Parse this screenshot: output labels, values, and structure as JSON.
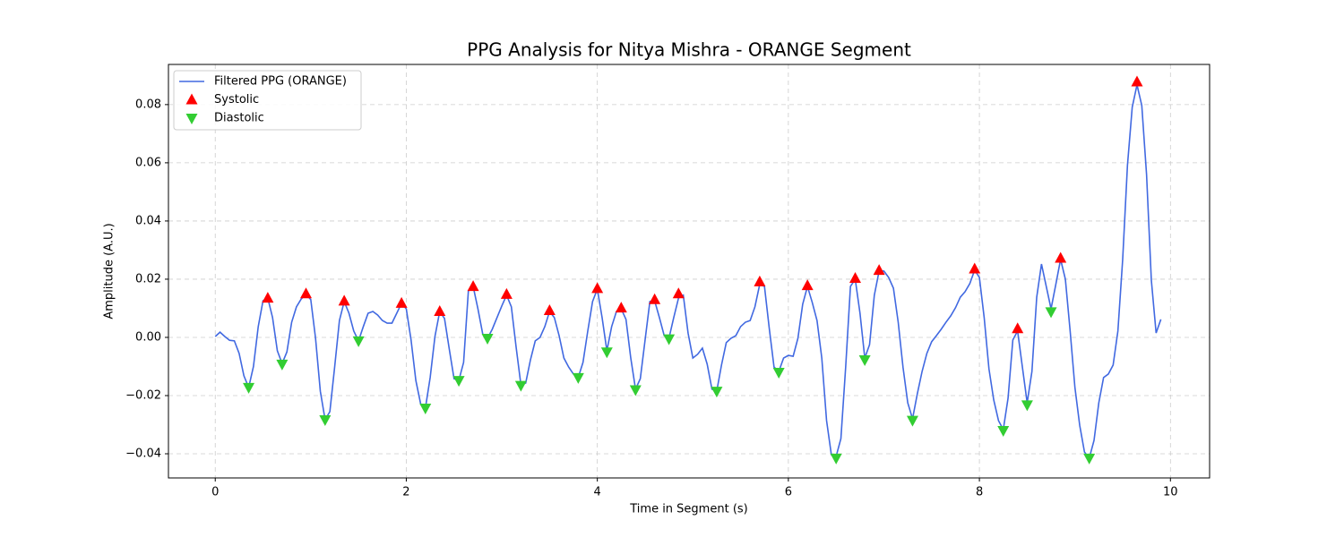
{
  "chart_data": {
    "type": "line",
    "title": "PPG Analysis for Nitya Mishra - ORANGE Segment",
    "x_label": "Time in Segment (s)",
    "y_label": "Amplitude (A.U.)",
    "xlim": [
      -0.49,
      10.41
    ],
    "ylim": [
      -0.0483,
      0.0938
    ],
    "xticks": [
      0,
      2,
      4,
      6,
      8,
      10
    ],
    "yticks": [
      {
        "value": -0.04,
        "label": "−0.04"
      },
      {
        "value": -0.02,
        "label": "−0.02"
      },
      {
        "value": 0,
        "label": "0.00"
      },
      {
        "value": 0.02,
        "label": "0.02"
      },
      {
        "value": 0.04,
        "label": "0.04"
      },
      {
        "value": 0.06,
        "label": "0.06"
      },
      {
        "value": 0.08,
        "label": "0.08"
      }
    ],
    "grid": true,
    "legend": "upper left",
    "series": [
      {
        "name": "Filtered PPG (ORANGE)",
        "type": "line",
        "color": "#4169e1",
        "x": [
          0,
          0.05,
          0.1,
          0.15,
          0.2,
          0.25,
          0.3,
          0.35,
          0.4,
          0.45,
          0.5,
          0.55,
          0.6,
          0.65,
          0.7,
          0.75,
          0.8,
          0.85,
          0.9,
          0.95,
          1.0,
          1.05,
          1.1,
          1.15,
          1.2,
          1.25,
          1.3,
          1.35,
          1.4,
          1.45,
          1.5,
          1.55,
          1.6,
          1.65,
          1.7,
          1.75,
          1.8,
          1.85,
          1.9,
          1.95,
          2.0,
          2.05,
          2.1,
          2.15,
          2.2,
          2.25,
          2.3,
          2.35,
          2.4,
          2.45,
          2.5,
          2.55,
          2.6,
          2.65,
          2.7,
          2.75,
          2.8,
          2.85,
          2.9,
          2.95,
          3.0,
          3.05,
          3.1,
          3.15,
          3.2,
          3.25,
          3.3,
          3.35,
          3.4,
          3.45,
          3.5,
          3.55,
          3.6,
          3.65,
          3.7,
          3.75,
          3.8,
          3.85,
          3.9,
          3.95,
          4.0,
          4.05,
          4.1,
          4.15,
          4.2,
          4.25,
          4.3,
          4.35,
          4.4,
          4.45,
          4.5,
          4.55,
          4.6,
          4.65,
          4.7,
          4.75,
          4.8,
          4.85,
          4.9,
          4.95,
          5.0,
          5.05,
          5.1,
          5.15,
          5.2,
          5.25,
          5.3,
          5.35,
          5.4,
          5.45,
          5.5,
          5.55,
          5.6,
          5.65,
          5.7,
          5.75,
          5.8,
          5.85,
          5.9,
          5.95,
          6.0,
          6.05,
          6.1,
          6.15,
          6.2,
          6.25,
          6.3,
          6.35,
          6.4,
          6.45,
          6.5,
          6.55,
          6.6,
          6.65,
          6.7,
          6.75,
          6.8,
          6.85,
          6.9,
          6.95,
          7.0,
          7.05,
          7.1,
          7.15,
          7.2,
          7.25,
          7.3,
          7.35,
          7.4,
          7.45,
          7.5,
          7.55,
          7.6,
          7.65,
          7.7,
          7.75,
          7.8,
          7.85,
          7.9,
          7.95,
          8.0,
          8.05,
          8.1,
          8.15,
          8.2,
          8.25,
          8.3,
          8.35,
          8.4,
          8.45,
          8.5,
          8.55,
          8.6,
          8.65,
          8.7,
          8.75,
          8.8,
          8.85,
          8.9,
          8.95,
          9.0,
          9.05,
          9.1,
          9.15,
          9.2,
          9.25,
          9.3,
          9.35,
          9.4,
          9.45,
          9.5,
          9.55,
          9.6,
          9.65,
          9.7,
          9.75,
          9.8,
          9.85,
          9.9
        ],
        "values": [
          0.0003,
          0.0018,
          0.0003,
          -0.001,
          -0.0012,
          -0.0055,
          -0.0132,
          -0.0172,
          -0.01,
          0.0037,
          0.0126,
          0.0135,
          0.0068,
          -0.0046,
          -0.009,
          -0.005,
          0.0052,
          0.0105,
          0.0132,
          0.0148,
          0.013,
          -0.0003,
          -0.0185,
          -0.0283,
          -0.0255,
          -0.0102,
          0.0058,
          0.0123,
          0.0083,
          0.0022,
          -0.0012,
          0.0037,
          0.0083,
          0.0089,
          0.0077,
          0.0058,
          0.0049,
          0.0049,
          0.0083,
          0.0117,
          0.0098,
          -0.0009,
          -0.0148,
          -0.0228,
          -0.0243,
          -0.0138,
          0.0003,
          0.0089,
          0.0065,
          -0.004,
          -0.0142,
          -0.0148,
          -0.0086,
          0.016,
          0.0175,
          0.0098,
          0.0012,
          -0.0003,
          0.0028,
          0.0068,
          0.0108,
          0.0145,
          0.0105,
          -0.0034,
          -0.0163,
          -0.0157,
          -0.0077,
          -0.0012,
          0,
          0.0037,
          0.0089,
          0.0068,
          0.0006,
          -0.0071,
          -0.0102,
          -0.0126,
          -0.0138,
          -0.0086,
          0.0022,
          0.0123,
          0.0166,
          0.0068,
          -0.0046,
          0.0037,
          0.0089,
          0.0098,
          0.0062,
          -0.0071,
          -0.0178,
          -0.0142,
          -0.0009,
          0.0123,
          0.0126,
          0.0068,
          0.0006,
          -0.0003,
          0.0068,
          0.0135,
          0.0145,
          0.0015,
          -0.0071,
          -0.0058,
          -0.0037,
          -0.0092,
          -0.0178,
          -0.0185,
          -0.0095,
          -0.0018,
          -0.0003,
          0.0006,
          0.0037,
          0.0052,
          0.0058,
          0.0105,
          0.0182,
          0.0175,
          0.0031,
          -0.0102,
          -0.0117,
          -0.0071,
          -0.0062,
          -0.0065,
          -0.0003,
          0.0114,
          0.0175,
          0.012,
          0.0058,
          -0.0071,
          -0.0286,
          -0.0403,
          -0.0409,
          -0.0348,
          -0.0102,
          0.0175,
          0.02,
          0.0083,
          -0.0071,
          -0.0025,
          0.0145,
          0.0228,
          0.0228,
          0.0206,
          0.0169,
          0.0052,
          -0.0102,
          -0.0225,
          -0.028,
          -0.0194,
          -0.0117,
          -0.0055,
          -0.0015,
          0.0006,
          0.0028,
          0.0052,
          0.0074,
          0.0102,
          0.0138,
          0.0157,
          0.0185,
          0.0231,
          0.0206,
          0.0068,
          -0.0108,
          -0.0215,
          -0.0286,
          -0.0317,
          -0.0209,
          -0.0009,
          0.0022,
          -0.0102,
          -0.0225,
          -0.0117,
          0.0138,
          0.0252,
          0.0175,
          0.0098,
          0.0182,
          0.0268,
          0.02,
          0.0022,
          -0.0172,
          -0.0302,
          -0.0394,
          -0.0415,
          -0.0354,
          -0.0225,
          -0.0138,
          -0.0126,
          -0.0095,
          0.0022,
          0.0268,
          0.0591,
          0.0791,
          0.0868,
          0.0797,
          0.056,
          0.0197,
          0.0015,
          0.0062
        ]
      },
      {
        "name": "Systolic",
        "type": "scatter",
        "marker": "^",
        "color": "#ff0000",
        "x": [
          0.55,
          0.95,
          1.35,
          1.95,
          2.35,
          2.7,
          3.05,
          3.5,
          4.0,
          4.25,
          4.6,
          4.85,
          5.7,
          6.2,
          6.7,
          6.95,
          7.95,
          8.4,
          8.85,
          9.65
        ],
        "values": [
          0.0135,
          0.015,
          0.0125,
          0.0117,
          0.0089,
          0.0175,
          0.0148,
          0.0092,
          0.0168,
          0.0101,
          0.013,
          0.015,
          0.0191,
          0.0178,
          0.0203,
          0.023,
          0.0235,
          0.003,
          0.0272,
          0.0878
        ]
      },
      {
        "name": "Diastolic",
        "type": "scatter",
        "marker": "v",
        "color": "#32cd32",
        "x": [
          0.35,
          0.7,
          1.15,
          1.5,
          2.2,
          2.55,
          2.85,
          3.2,
          3.8,
          4.1,
          4.4,
          4.75,
          5.25,
          5.9,
          6.5,
          6.8,
          7.3,
          8.25,
          8.5,
          8.75,
          9.15
        ],
        "values": [
          -0.0172,
          -0.0092,
          -0.0283,
          -0.0012,
          -0.0243,
          -0.0148,
          -0.0003,
          -0.0165,
          -0.0138,
          -0.005,
          -0.018,
          -0.0005,
          -0.0185,
          -0.012,
          -0.0415,
          -0.0077,
          -0.0285,
          -0.032,
          -0.0232,
          0.0088,
          -0.0415
        ]
      }
    ]
  }
}
